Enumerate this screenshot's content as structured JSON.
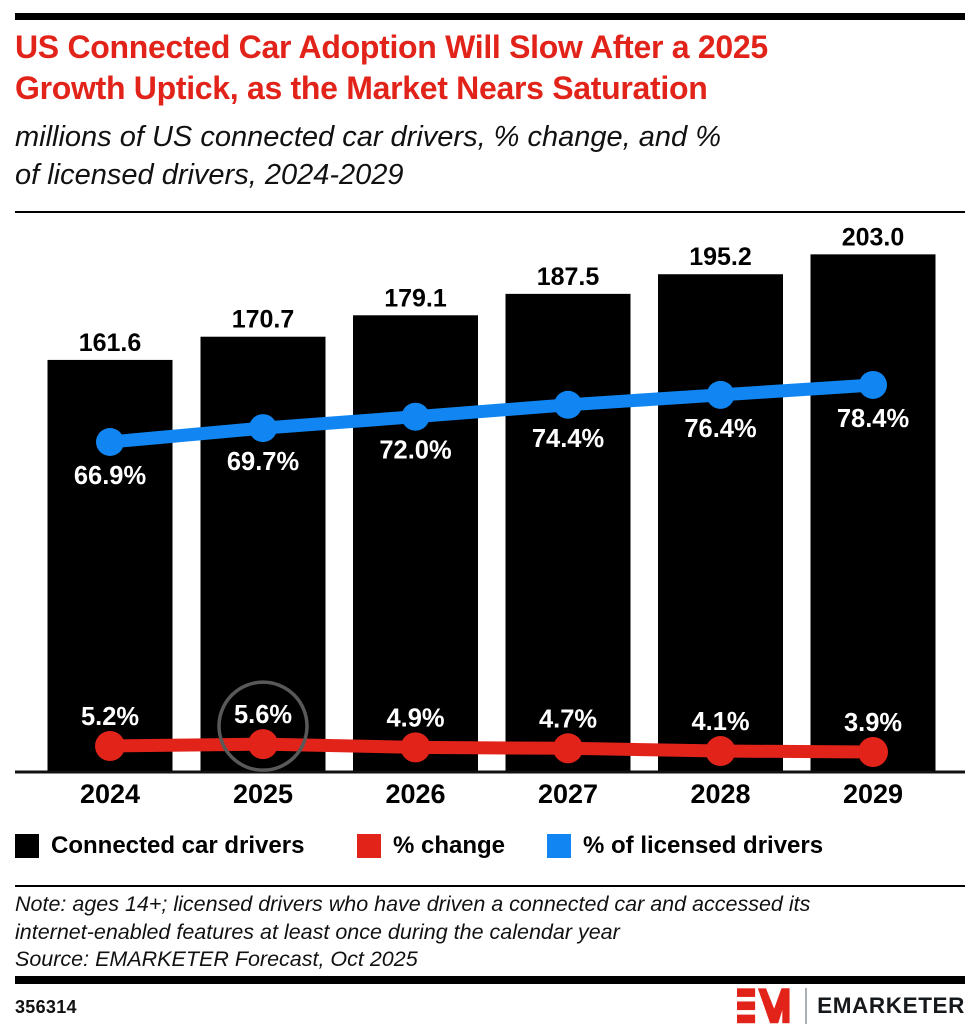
{
  "header": {
    "title_lines": [
      "US Connected Car Adoption Will Slow After a 2025",
      "Growth Uptick, as the Market Nears Saturation"
    ],
    "subtitle_lines": [
      "millions of US connected car drivers, % change, and %",
      "of licensed drivers, 2024-2029"
    ],
    "title_color": "#e2231a"
  },
  "chart_data": {
    "type": "combo",
    "categories": [
      "2024",
      "2025",
      "2026",
      "2027",
      "2028",
      "2029"
    ],
    "series": [
      {
        "name": "Connected car drivers",
        "type": "bar",
        "unit": "millions",
        "color": "#000000",
        "values": [
          161.6,
          170.7,
          179.1,
          187.5,
          195.2,
          203.0
        ],
        "labels": [
          "161.6",
          "170.7",
          "179.1",
          "187.5",
          "195.2",
          "203.0"
        ]
      },
      {
        "name": "% change",
        "type": "line",
        "color": "#e2231a",
        "values": [
          5.2,
          5.6,
          4.9,
          4.7,
          4.1,
          3.9
        ],
        "labels": [
          "5.2%",
          "5.6%",
          "4.9%",
          "4.7%",
          "4.1%",
          "3.9%"
        ]
      },
      {
        "name": "% of licensed drivers",
        "type": "line",
        "color": "#1186f2",
        "values": [
          66.9,
          69.7,
          72.0,
          74.4,
          76.4,
          78.4
        ],
        "labels": [
          "66.9%",
          "69.7%",
          "72.0%",
          "74.4%",
          "76.4%",
          "78.4%"
        ]
      }
    ],
    "annotations": [
      {
        "type": "circle-highlight",
        "series": "% change",
        "category": "2025",
        "color": "#595959"
      }
    ],
    "title": "US Connected Car Adoption Will Slow After a 2025 Growth Uptick, as the Market Nears Saturation",
    "xlabel": "",
    "ylabel": "",
    "grid": false,
    "legend_position": "bottom"
  },
  "legend": {
    "items": [
      {
        "label": "Connected car drivers",
        "color": "#000000"
      },
      {
        "label": "% change",
        "color": "#e2231a"
      },
      {
        "label": "% of licensed drivers",
        "color": "#1186f2"
      }
    ]
  },
  "footnote": {
    "note_lines": [
      "Note: ages 14+; licensed drivers who have driven a connected car and accessed its",
      "internet-enabled features at least once during the calendar year"
    ],
    "source": "Source: EMARKETER Forecast, Oct 2025"
  },
  "footer": {
    "chart_id": "356314",
    "brand": "EMARKETER"
  }
}
